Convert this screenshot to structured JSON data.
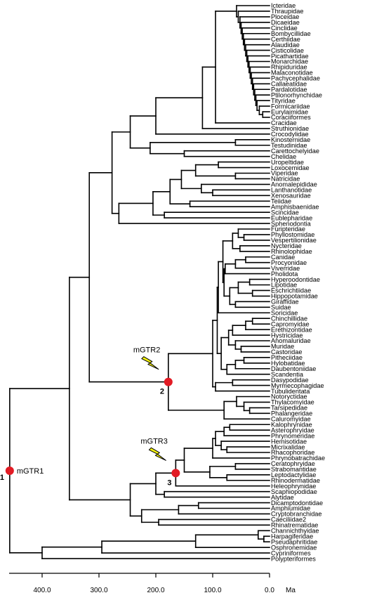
{
  "taxa": [
    "Icteridae",
    "Thraupidae",
    "Ploceidae",
    "Dicaeidae",
    "Cinclidae",
    "Bombycillidae",
    "Certhiidae",
    "Alaudidae",
    "Cisticolidae",
    "Picathartidae",
    "Monarchidae",
    "Rhipiduridae",
    "Malaconotidae",
    "Pachycephalidae",
    "Callaeatidae",
    "Pardalotidae",
    "Ptilonorhynchidae",
    "Tityridae",
    "Formicariidae",
    "Eurylaimidae",
    "Coraciiformes",
    "Cracidae",
    "Struthionidae",
    "Crocodylidae",
    "Kinosternidae",
    "Testudinidae",
    "Carettochelyidae",
    "Chelidae",
    "Uropeltidae",
    "Loxocemidae",
    "Viperidae",
    "Natricidae",
    "Anomalepididae",
    "Lanthanotidae",
    "Xenosauridae",
    "Teiidae",
    "Amphisbaenidae",
    "Scincidae",
    "Eublepharidae",
    "Sphenodontia",
    "Furipteridae",
    "Phyllostomidae",
    "Vespertilionidae",
    "Nycteridae",
    "Rhinolophidae",
    "Canidae",
    "Procyonidae",
    "Viverridae",
    "Pholidota",
    "Hyperoodontidae",
    "Lipotidae",
    "Eschrichtiidae",
    "Hippopotamidae",
    "Giraffidae",
    "Suidae",
    "Soricidae",
    "Chinchillidae",
    "Capromyidae",
    "Erethizontidae",
    "Hystricidae",
    "Anomaluridae",
    "Muridae",
    "Castoridae",
    "Pitheciidae",
    "Hylobatidae",
    "Daubentoniidae",
    "Scandentia",
    "Dasypodidae",
    "Myrmecophagidae",
    "Tubulidentata",
    "Notoryctidae",
    "Thylacomyidae",
    "Tarsipedidae",
    "Phalangeridae",
    "Caluromyidae",
    "Kalophrynidae",
    "Asterophryidae",
    "Phrynomeridae",
    "Hemisotidae",
    "Micrixalidae",
    "Rhacophoridae",
    "Phrynobatrachidae",
    "Ceratophryidae",
    "Strabomantidae",
    "Leptodactylidae",
    "Rhinodermatidae",
    "Heleophrynidae",
    "Scaphiopodidae",
    "Alytidae",
    "Dicamptodontidae",
    "Amphiumidae",
    "Cryptobranchidae",
    "Caeciliidae2",
    "Rhinatrematidae",
    "Channichthyidae",
    "Harpagiferidae",
    "Pseudaphritidae",
    "Osphronemidae",
    "Cypriniformes",
    "Polypteriformes"
  ],
  "axis": {
    "ticks": [
      {
        "ma": 400,
        "label": "400.0"
      },
      {
        "ma": 300,
        "label": "300.0"
      },
      {
        "ma": 200,
        "label": "200.0"
      },
      {
        "ma": 100,
        "label": "100.0"
      },
      {
        "ma": 0,
        "label": "0.0"
      }
    ],
    "unit": "Ma"
  },
  "events": [
    {
      "label": "mGTR1",
      "number": "1",
      "age_ma": 457,
      "lightning": false
    },
    {
      "label": "mGTR2",
      "number": "2",
      "age_ma": 172,
      "lightning": true
    },
    {
      "label": "mGTR3",
      "number": "3",
      "age_ma": 163,
      "lightning": true
    }
  ],
  "colors": {
    "node": "#e21b24",
    "lightning_fill": "#f2f010",
    "line": "#000000"
  }
}
